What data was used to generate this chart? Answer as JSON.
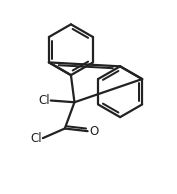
{
  "background_color": "#ffffff",
  "line_color": "#222222",
  "line_width": 1.6,
  "text_color": "#222222",
  "label_fontsize": 8.5,
  "figsize": [
    1.77,
    1.94
  ],
  "dpi": 100,
  "xlim": [
    0,
    10
  ],
  "ylim": [
    0,
    11
  ]
}
